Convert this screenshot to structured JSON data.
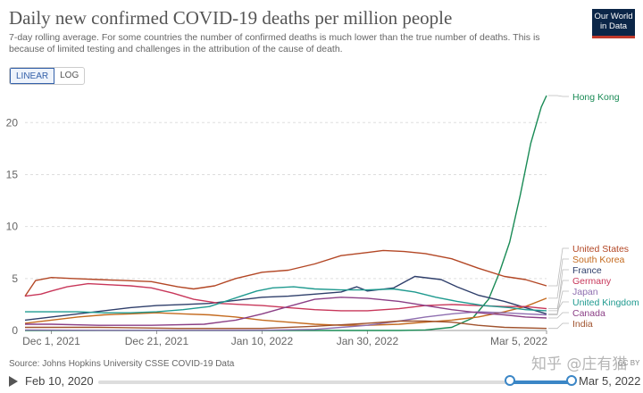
{
  "header": {
    "title": "Daily new confirmed COVID-19 deaths per million people",
    "subtitle": "7-day rolling average. For some countries the number of confirmed deaths is much lower than the true number of deaths. This is because of limited testing and challenges in the attribution of the cause of death.",
    "logo_line1": "Our World",
    "logo_line2": "in Data"
  },
  "scale_toggle": {
    "linear": "LINEAR",
    "log": "LOG",
    "selected": "LINEAR"
  },
  "footer": {
    "source": "Source: Johns Hopkins University CSSE COVID-19 Data",
    "license": "CC BY",
    "watermark": "知乎 @庄有猫"
  },
  "timeline": {
    "start_label": "Feb 10, 2020",
    "end_label": "Mar 5, 2022",
    "selection_start_fraction": 0.87,
    "selection_end_fraction": 1.0
  },
  "colors": {
    "hong_kong": "#1a8b56",
    "united_states": "#b34725",
    "south_korea": "#c46a1e",
    "france": "#2f3f6b",
    "germany": "#c8375a",
    "japan": "#8f6fb0",
    "united_kingdom": "#1f9a8f",
    "canada": "#8b3f86",
    "india": "#a0522d"
  },
  "chart_data": {
    "type": "line",
    "title": "Daily new confirmed COVID-19 deaths per million people",
    "x_ticks": [
      "Dec 1, 2021",
      "Dec 21, 2021",
      "Jan 10, 2022",
      "Jan 30, 2022",
      "Mar 5, 2022"
    ],
    "x_range": [
      "2021-11-26",
      "2022-03-05"
    ],
    "y_ticks": [
      "0",
      "5",
      "10",
      "15",
      "20"
    ],
    "ylim": [
      0,
      22.6
    ],
    "grid": "horizontal dashed",
    "series": [
      {
        "name": "Hong Kong",
        "color": "#1a8b56",
        "points": [
          [
            "2021-11-26",
            0
          ],
          [
            "2022-02-05",
            0
          ],
          [
            "2022-02-10",
            0.05
          ],
          [
            "2022-02-15",
            0.3
          ],
          [
            "2022-02-19",
            1.2
          ],
          [
            "2022-02-22",
            3.0
          ],
          [
            "2022-02-24",
            5.5
          ],
          [
            "2022-02-26",
            8.5
          ],
          [
            "2022-02-28",
            13.0
          ],
          [
            "2022-03-02",
            18.0
          ],
          [
            "2022-03-04",
            21.5
          ],
          [
            "2022-03-05",
            22.6
          ]
        ]
      },
      {
        "name": "United States",
        "color": "#b34725",
        "points": [
          [
            "2021-11-26",
            3.3
          ],
          [
            "2021-11-28",
            4.8
          ],
          [
            "2021-12-01",
            5.1
          ],
          [
            "2021-12-05",
            5.0
          ],
          [
            "2021-12-10",
            4.9
          ],
          [
            "2021-12-15",
            4.8
          ],
          [
            "2021-12-20",
            4.7
          ],
          [
            "2021-12-25",
            4.2
          ],
          [
            "2021-12-28",
            4.0
          ],
          [
            "2022-01-01",
            4.3
          ],
          [
            "2022-01-05",
            5.0
          ],
          [
            "2022-01-10",
            5.6
          ],
          [
            "2022-01-15",
            5.8
          ],
          [
            "2022-01-20",
            6.4
          ],
          [
            "2022-01-25",
            7.2
          ],
          [
            "2022-01-30",
            7.5
          ],
          [
            "2022-02-02",
            7.7
          ],
          [
            "2022-02-06",
            7.6
          ],
          [
            "2022-02-10",
            7.4
          ],
          [
            "2022-02-15",
            6.9
          ],
          [
            "2022-02-20",
            6.0
          ],
          [
            "2022-02-25",
            5.2
          ],
          [
            "2022-03-01",
            4.9
          ],
          [
            "2022-03-05",
            4.3
          ]
        ]
      },
      {
        "name": "South Korea",
        "color": "#c46a1e",
        "points": [
          [
            "2021-11-26",
            0.7
          ],
          [
            "2021-12-01",
            1.0
          ],
          [
            "2021-12-06",
            1.3
          ],
          [
            "2021-12-11",
            1.5
          ],
          [
            "2021-12-16",
            1.6
          ],
          [
            "2021-12-21",
            1.7
          ],
          [
            "2021-12-26",
            1.6
          ],
          [
            "2021-12-31",
            1.5
          ],
          [
            "2022-01-05",
            1.3
          ],
          [
            "2022-01-10",
            1.0
          ],
          [
            "2022-01-15",
            0.8
          ],
          [
            "2022-01-20",
            0.6
          ],
          [
            "2022-01-25",
            0.5
          ],
          [
            "2022-01-30",
            0.5
          ],
          [
            "2022-02-05",
            0.6
          ],
          [
            "2022-02-10",
            0.8
          ],
          [
            "2022-02-15",
            1.0
          ],
          [
            "2022-02-20",
            1.3
          ],
          [
            "2022-02-25",
            1.8
          ],
          [
            "2022-03-01",
            2.3
          ],
          [
            "2022-03-05",
            3.1
          ]
        ]
      },
      {
        "name": "France",
        "color": "#2f3f6b",
        "points": [
          [
            "2021-11-26",
            1.0
          ],
          [
            "2021-12-01",
            1.3
          ],
          [
            "2021-12-06",
            1.6
          ],
          [
            "2021-12-11",
            1.9
          ],
          [
            "2021-12-16",
            2.2
          ],
          [
            "2021-12-21",
            2.4
          ],
          [
            "2021-12-26",
            2.5
          ],
          [
            "2021-12-31",
            2.6
          ],
          [
            "2022-01-05",
            2.9
          ],
          [
            "2022-01-10",
            3.2
          ],
          [
            "2022-01-15",
            3.3
          ],
          [
            "2022-01-20",
            3.5
          ],
          [
            "2022-01-25",
            3.7
          ],
          [
            "2022-01-28",
            4.2
          ],
          [
            "2022-01-30",
            3.8
          ],
          [
            "2022-02-04",
            4.1
          ],
          [
            "2022-02-08",
            5.2
          ],
          [
            "2022-02-13",
            4.9
          ],
          [
            "2022-02-16",
            4.2
          ],
          [
            "2022-02-20",
            3.4
          ],
          [
            "2022-02-25",
            2.8
          ],
          [
            "2022-03-01",
            2.2
          ],
          [
            "2022-03-05",
            1.6
          ]
        ]
      },
      {
        "name": "Germany",
        "color": "#c8375a",
        "points": [
          [
            "2021-11-26",
            3.3
          ],
          [
            "2021-11-29",
            3.5
          ],
          [
            "2021-12-01",
            3.8
          ],
          [
            "2021-12-04",
            4.2
          ],
          [
            "2021-12-08",
            4.5
          ],
          [
            "2021-12-12",
            4.4
          ],
          [
            "2021-12-16",
            4.3
          ],
          [
            "2021-12-20",
            4.1
          ],
          [
            "2021-12-24",
            3.6
          ],
          [
            "2021-12-28",
            3.0
          ],
          [
            "2022-01-02",
            2.6
          ],
          [
            "2022-01-06",
            2.5
          ],
          [
            "2022-01-10",
            2.4
          ],
          [
            "2022-01-15",
            2.2
          ],
          [
            "2022-01-20",
            2.0
          ],
          [
            "2022-01-25",
            1.9
          ],
          [
            "2022-01-30",
            1.9
          ],
          [
            "2022-02-05",
            2.1
          ],
          [
            "2022-02-10",
            2.4
          ],
          [
            "2022-02-15",
            2.5
          ],
          [
            "2022-02-20",
            2.4
          ],
          [
            "2022-02-25",
            2.3
          ],
          [
            "2022-03-01",
            2.3
          ],
          [
            "2022-03-05",
            2.1
          ]
        ]
      },
      {
        "name": "Japan",
        "color": "#8f6fb0",
        "points": [
          [
            "2021-11-26",
            0.05
          ],
          [
            "2021-12-10",
            0.02
          ],
          [
            "2021-12-25",
            0.02
          ],
          [
            "2022-01-10",
            0.03
          ],
          [
            "2022-01-20",
            0.1
          ],
          [
            "2022-01-25",
            0.3
          ],
          [
            "2022-01-30",
            0.5
          ],
          [
            "2022-02-05",
            0.9
          ],
          [
            "2022-02-10",
            1.3
          ],
          [
            "2022-02-15",
            1.6
          ],
          [
            "2022-02-20",
            1.8
          ],
          [
            "2022-02-25",
            1.7
          ],
          [
            "2022-03-01",
            1.6
          ],
          [
            "2022-03-05",
            1.5
          ]
        ]
      },
      {
        "name": "United Kingdom",
        "color": "#1f9a8f",
        "points": [
          [
            "2021-11-26",
            1.8
          ],
          [
            "2021-12-01",
            1.8
          ],
          [
            "2021-12-06",
            1.8
          ],
          [
            "2021-12-11",
            1.7
          ],
          [
            "2021-12-16",
            1.7
          ],
          [
            "2021-12-21",
            1.8
          ],
          [
            "2021-12-26",
            2.0
          ],
          [
            "2021-12-31",
            2.3
          ],
          [
            "2022-01-03",
            2.8
          ],
          [
            "2022-01-06",
            3.3
          ],
          [
            "2022-01-09",
            3.8
          ],
          [
            "2022-01-12",
            4.1
          ],
          [
            "2022-01-16",
            4.2
          ],
          [
            "2022-01-20",
            4.0
          ],
          [
            "2022-01-25",
            3.9
          ],
          [
            "2022-01-30",
            3.9
          ],
          [
            "2022-02-04",
            4.0
          ],
          [
            "2022-02-08",
            3.7
          ],
          [
            "2022-02-12",
            3.2
          ],
          [
            "2022-02-16",
            2.8
          ],
          [
            "2022-02-21",
            2.4
          ],
          [
            "2022-02-26",
            2.2
          ],
          [
            "2022-03-01",
            2.0
          ],
          [
            "2022-03-05",
            1.9
          ]
        ]
      },
      {
        "name": "Canada",
        "color": "#8b3f86",
        "points": [
          [
            "2021-11-26",
            0.6
          ],
          [
            "2021-12-01",
            0.6
          ],
          [
            "2021-12-10",
            0.5
          ],
          [
            "2021-12-20",
            0.5
          ],
          [
            "2021-12-30",
            0.6
          ],
          [
            "2022-01-05",
            1.0
          ],
          [
            "2022-01-10",
            1.6
          ],
          [
            "2022-01-15",
            2.3
          ],
          [
            "2022-01-20",
            3.0
          ],
          [
            "2022-01-25",
            3.2
          ],
          [
            "2022-01-30",
            3.1
          ],
          [
            "2022-02-05",
            2.8
          ],
          [
            "2022-02-10",
            2.4
          ],
          [
            "2022-02-15",
            2.0
          ],
          [
            "2022-02-20",
            1.7
          ],
          [
            "2022-02-25",
            1.5
          ],
          [
            "2022-03-01",
            1.3
          ],
          [
            "2022-03-05",
            1.2
          ]
        ]
      },
      {
        "name": "India",
        "color": "#a0522d",
        "points": [
          [
            "2021-11-26",
            0.3
          ],
          [
            "2021-12-10",
            0.3
          ],
          [
            "2021-12-25",
            0.2
          ],
          [
            "2022-01-10",
            0.2
          ],
          [
            "2022-01-20",
            0.4
          ],
          [
            "2022-01-30",
            0.7
          ],
          [
            "2022-02-05",
            0.9
          ],
          [
            "2022-02-10",
            0.9
          ],
          [
            "2022-02-15",
            0.8
          ],
          [
            "2022-02-20",
            0.5
          ],
          [
            "2022-02-25",
            0.3
          ],
          [
            "2022-03-05",
            0.2
          ]
        ]
      }
    ]
  }
}
